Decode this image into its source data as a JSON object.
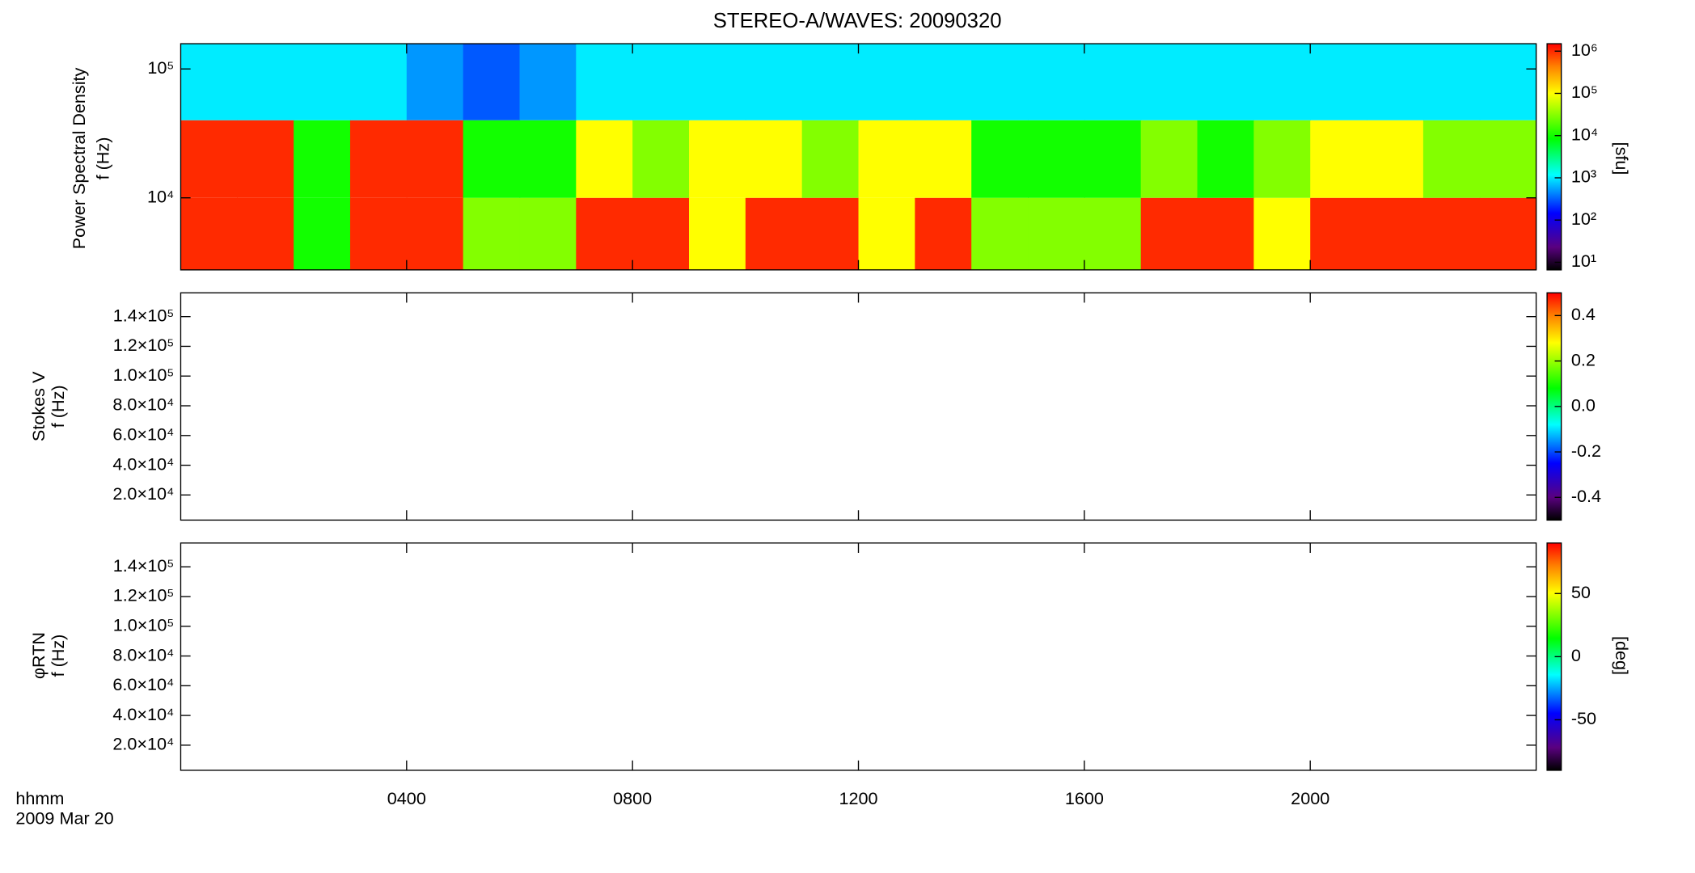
{
  "chart_data": [
    {
      "type": "heatmap",
      "title": "STEREO-A/WAVES: 20090320",
      "ylabel": [
        "Power Spectral Density",
        "f (Hz)"
      ],
      "ylog": true,
      "ylim": [
        2760,
        157000
      ],
      "yticks": [
        {
          "value": 10000,
          "label": "10⁴"
        },
        {
          "value": 100000,
          "label": "10⁵"
        }
      ],
      "xbins": [
        0,
        1,
        2,
        3,
        4,
        5,
        6,
        7,
        8,
        9,
        10,
        11,
        12,
        13,
        14,
        15,
        16,
        17,
        18,
        19,
        20,
        21,
        22,
        23,
        24
      ],
      "ybins": [
        2760,
        10000,
        40000,
        157000
      ],
      "z": [
        [
          1000000,
          1000000,
          10000,
          1000000,
          1000000,
          30000,
          30000,
          1000000,
          1000000,
          100000,
          1000000,
          1000000,
          100000,
          1000000,
          30000,
          30000,
          30000,
          1000000,
          1000000,
          100000,
          1000000,
          1000000,
          1000000,
          1000000
        ],
        [
          1000000,
          1000000,
          10000,
          1000000,
          1000000,
          10000,
          10000,
          100000,
          30000,
          100000,
          100000,
          30000,
          100000,
          100000,
          10000,
          10000,
          10000,
          30000,
          10000,
          30000,
          100000,
          100000,
          30000,
          30000
        ],
        [
          1000,
          1000,
          1000,
          1000,
          500,
          300,
          500,
          1000,
          1000,
          1000,
          1000,
          1000,
          1000,
          1000,
          1000,
          1000,
          1000,
          1000,
          1000,
          1000,
          1000,
          1000,
          1000,
          1000
        ]
      ],
      "zlog": true,
      "zlim": [
        6.6,
        1500000
      ],
      "zticks": [
        {
          "value": 10,
          "label": "10¹"
        },
        {
          "value": 100,
          "label": "10²"
        },
        {
          "value": 1000,
          "label": "10³"
        },
        {
          "value": 10000,
          "label": "10⁴"
        },
        {
          "value": 100000,
          "label": "10⁵"
        },
        {
          "value": 1000000,
          "label": "10⁶"
        }
      ],
      "zlabel": "[sfu]"
    },
    {
      "type": "heatmap",
      "ylabel": [
        "Stokes V",
        "f (Hz)"
      ],
      "ylog": false,
      "ylim": [
        3100,
        156000
      ],
      "yticks": [
        {
          "value": 20000,
          "label": "2.0×10⁴"
        },
        {
          "value": 40000,
          "label": "4.0×10⁴"
        },
        {
          "value": 60000,
          "label": "6.0×10⁴"
        },
        {
          "value": 80000,
          "label": "8.0×10⁴"
        },
        {
          "value": 100000,
          "label": "1.0×10⁵"
        },
        {
          "value": 120000,
          "label": "1.2×10⁵"
        },
        {
          "value": 140000,
          "label": "1.4×10⁵"
        }
      ],
      "zlog": false,
      "zlim": [
        -0.5,
        0.5
      ],
      "zticks": [
        -0.4,
        -0.2,
        {
          "value": 0,
          "label": "0.0"
        },
        0.2,
        0.4
      ]
    },
    {
      "type": "heatmap",
      "ylabel": [
        "φRTN",
        "f (Hz)"
      ],
      "ylog": false,
      "ylim": [
        3100,
        156000
      ],
      "yticks": [
        {
          "value": 20000,
          "label": "2.0×10⁴"
        },
        {
          "value": 40000,
          "label": "4.0×10⁴"
        },
        {
          "value": 60000,
          "label": "6.0×10⁴"
        },
        {
          "value": 80000,
          "label": "8.0×10⁴"
        },
        {
          "value": 100000,
          "label": "1.0×10⁵"
        },
        {
          "value": 120000,
          "label": "1.2×10⁵"
        },
        {
          "value": 140000,
          "label": "1.4×10⁵"
        }
      ],
      "zlog": false,
      "zlim": [
        -90,
        90
      ],
      "zticks": [
        -50,
        0,
        50
      ],
      "zlabel": "[deg]",
      "xlim": [
        0,
        24
      ],
      "xticks": [
        {
          "value": 4,
          "label": "0400"
        },
        {
          "value": 8,
          "label": "0800"
        },
        {
          "value": 12,
          "label": "1200"
        },
        {
          "value": 16,
          "label": "1600"
        },
        {
          "value": 20,
          "label": "2000"
        }
      ],
      "xlabel": "hhmm",
      "date": "2009 Mar 20"
    }
  ]
}
